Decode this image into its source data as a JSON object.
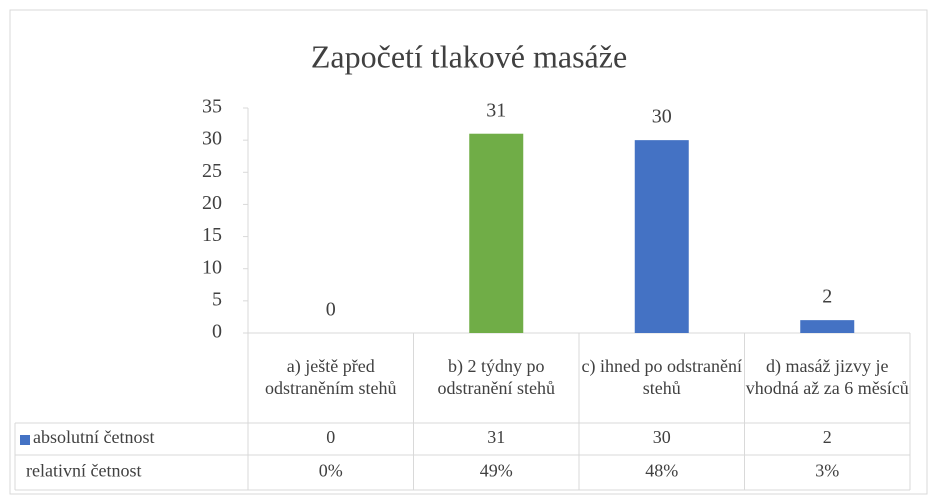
{
  "chart_data": {
    "type": "bar",
    "title": "Započetí tlakové masáže",
    "categories": [
      "a) ještě před odstraněním stehů",
      "b) 2 týdny po odstranění stehů",
      "c) ihned po odstranění stehů",
      "d) masáž jizvy je vhodná až za 6 měsíců"
    ],
    "series": [
      {
        "name": "absolutní četnost",
        "color": "#4472c4",
        "colors": [
          "#4472c4",
          "#70ad47",
          "#4472c4",
          "#4472c4"
        ],
        "values": [
          0,
          31,
          30,
          2
        ]
      }
    ],
    "table_rows": [
      {
        "name": "relativní četnost",
        "values": [
          0,
          49,
          48,
          3
        ],
        "value_labels": [
          "0%",
          "49%",
          "48%",
          "3%"
        ]
      }
    ],
    "ylim": [
      0,
      35
    ],
    "yticks": [
      0,
      5,
      10,
      15,
      20,
      25,
      30,
      35
    ],
    "grid": false
  }
}
